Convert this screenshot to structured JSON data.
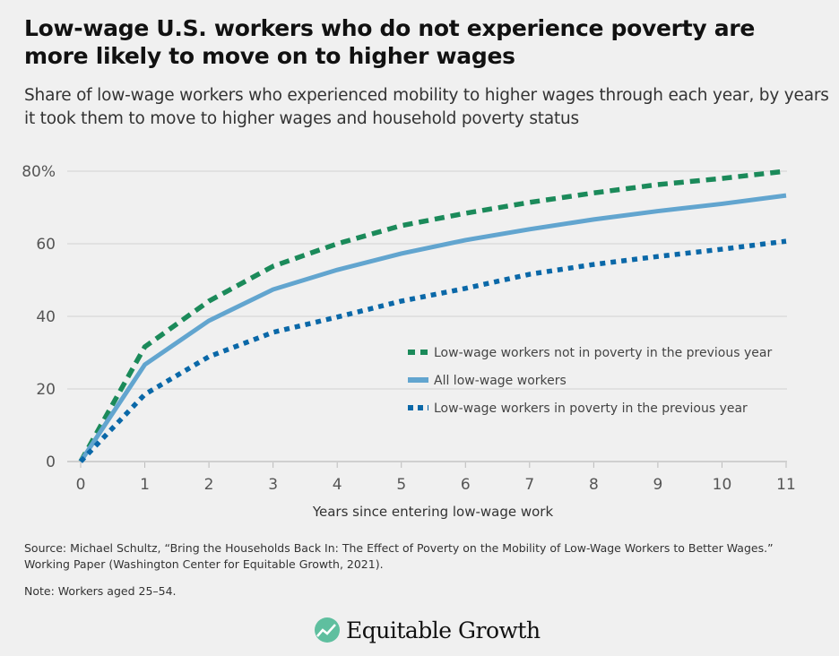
{
  "header": {
    "title": "Low-wage U.S. workers who do not experience poverty are more likely to move on to higher wages",
    "subtitle": "Share of low-wage workers who experienced mobility to higher wages through each year, by years it took them to move to higher wages and household poverty status"
  },
  "chart_data": {
    "type": "line",
    "xlabel": "Years since entering low-wage work",
    "ylabel": "",
    "x": [
      0,
      1,
      2,
      3,
      4,
      5,
      6,
      7,
      8,
      9,
      10,
      11
    ],
    "xlim": [
      0,
      11
    ],
    "ylim": [
      0,
      80
    ],
    "yticks": [
      0,
      20,
      40,
      60,
      80
    ],
    "ytick_labels": [
      "0",
      "20",
      "40",
      "60",
      "80%"
    ],
    "xtick_labels": [
      "0",
      "1",
      "2",
      "3",
      "4",
      "5",
      "6",
      "7",
      "8",
      "9",
      "10",
      "11"
    ],
    "grid": true,
    "legend_position": "right-middle",
    "series": [
      {
        "name": "Low-wage workers not in poverty in the previous year",
        "color": "#1b8a5a",
        "style": "dashed",
        "values": [
          0,
          31.6,
          44.2,
          53.8,
          60,
          65,
          68.4,
          71.4,
          74,
          76.3,
          78,
          80
        ]
      },
      {
        "name": "All low-wage workers",
        "color": "#62a5cf",
        "style": "solid",
        "values": [
          0,
          26.7,
          38.8,
          47.4,
          52.8,
          57.3,
          61,
          64,
          66.7,
          69,
          71,
          73.3
        ]
      },
      {
        "name": "Low-wage workers in poverty in the previous year",
        "color": "#0a68a8",
        "style": "dotted",
        "values": [
          0,
          18.5,
          28.9,
          35.6,
          39.8,
          44.2,
          47.7,
          51.6,
          54.3,
          56.5,
          58.5,
          60.7
        ]
      }
    ]
  },
  "footer": {
    "source": "Source:  Michael Schultz, “Bring the Households Back In: The Effect of Poverty on the Mobility of Low-Wage Workers to Better Wages.” Working Paper (Washington Center for Equitable Growth, 2021).",
    "note": "Note: Workers aged 25–54.",
    "logo": "Equitable Growth"
  }
}
